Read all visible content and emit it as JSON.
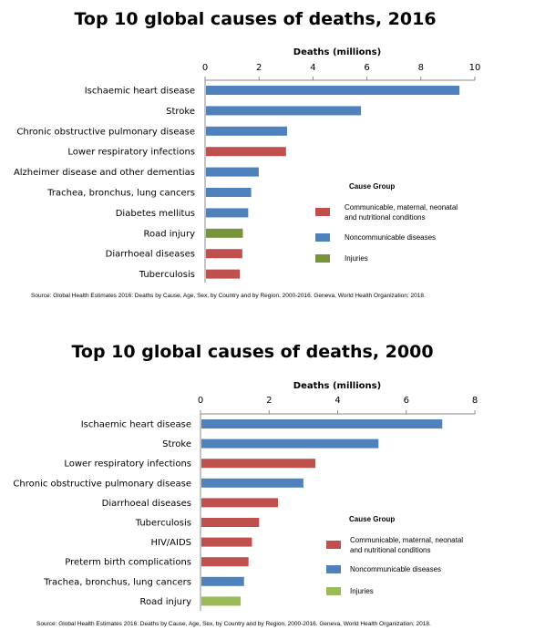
{
  "colors": {
    "communicable": "#c0504d",
    "noncommunicable": "#4f81bd",
    "injuries": "#9bbb59",
    "injuries_2016": "#77933c"
  },
  "chart_data": [
    {
      "type": "bar",
      "orientation": "horizontal",
      "title": "Top 10 global causes of deaths, 2016",
      "xlabel": "Deaths (millions)",
      "xlim": [
        0,
        10
      ],
      "xticks": [
        "0",
        "2",
        "4",
        "6",
        "8",
        "10"
      ],
      "categories": [
        "Ischaemic heart disease",
        "Stroke",
        "Chronic obstructive pulmonary disease",
        "Lower respiratory infections",
        "Alzheimer disease and other dementias",
        "Trachea, bronchus, lung cancers",
        "Diabetes mellitus",
        "Road injury",
        "Diarrhoeal diseases",
        "Tuberculosis"
      ],
      "values": [
        9.43,
        5.78,
        3.04,
        3.0,
        1.99,
        1.71,
        1.6,
        1.4,
        1.38,
        1.29
      ],
      "groups": [
        "noncommunicable",
        "noncommunicable",
        "noncommunicable",
        "communicable",
        "noncommunicable",
        "noncommunicable",
        "noncommunicable",
        "injuries",
        "communicable",
        "communicable"
      ],
      "legend": {
        "title": "Cause Group",
        "items": [
          {
            "group": "communicable",
            "label": "Communicable, maternal, neonatal and nutritional conditions"
          },
          {
            "group": "noncommunicable",
            "label": "Noncommunicable diseases"
          },
          {
            "group": "injuries",
            "label": "Injuries"
          }
        ]
      },
      "source": "Source:  Global Health Estimates  2016: Deaths by Cause, Age, Sex, by Country and by Region,  2000-2016. Geneva, World Health Organization;  2018."
    },
    {
      "type": "bar",
      "orientation": "horizontal",
      "title": "Top 10 global causes of deaths, 2000",
      "xlabel": "Deaths (millions)",
      "xlim": [
        0,
        8
      ],
      "xticks": [
        "0",
        "2",
        "4",
        "6",
        "8"
      ],
      "categories": [
        "Ischaemic heart disease",
        "Stroke",
        "Lower respiratory infections",
        "Chronic obstructive pulmonary disease",
        "Diarrhoeal diseases",
        "Tuberculosis",
        "HIV/AIDS",
        "Preterm birth complications",
        "Trachea, bronchus, lung cancers",
        "Road injury"
      ],
      "values": [
        7.05,
        5.19,
        3.35,
        3.0,
        2.26,
        1.71,
        1.5,
        1.4,
        1.27,
        1.17
      ],
      "groups": [
        "noncommunicable",
        "noncommunicable",
        "communicable",
        "noncommunicable",
        "communicable",
        "communicable",
        "communicable",
        "communicable",
        "noncommunicable",
        "injuries"
      ],
      "legend": {
        "title": "Cause Group",
        "items": [
          {
            "group": "communicable",
            "label": "Communicable, maternal, neonatal and nutritional conditions"
          },
          {
            "group": "noncommunicable",
            "label": "Noncommunicable diseases"
          },
          {
            "group": "injuries",
            "label": "Injuries"
          }
        ]
      },
      "source": "Source:  Global Health Estimates  2016: Deaths by Cause, Age, Sex, by Country and by Region,  2000-2016. Geneva, World Health Organization;  2018."
    }
  ]
}
